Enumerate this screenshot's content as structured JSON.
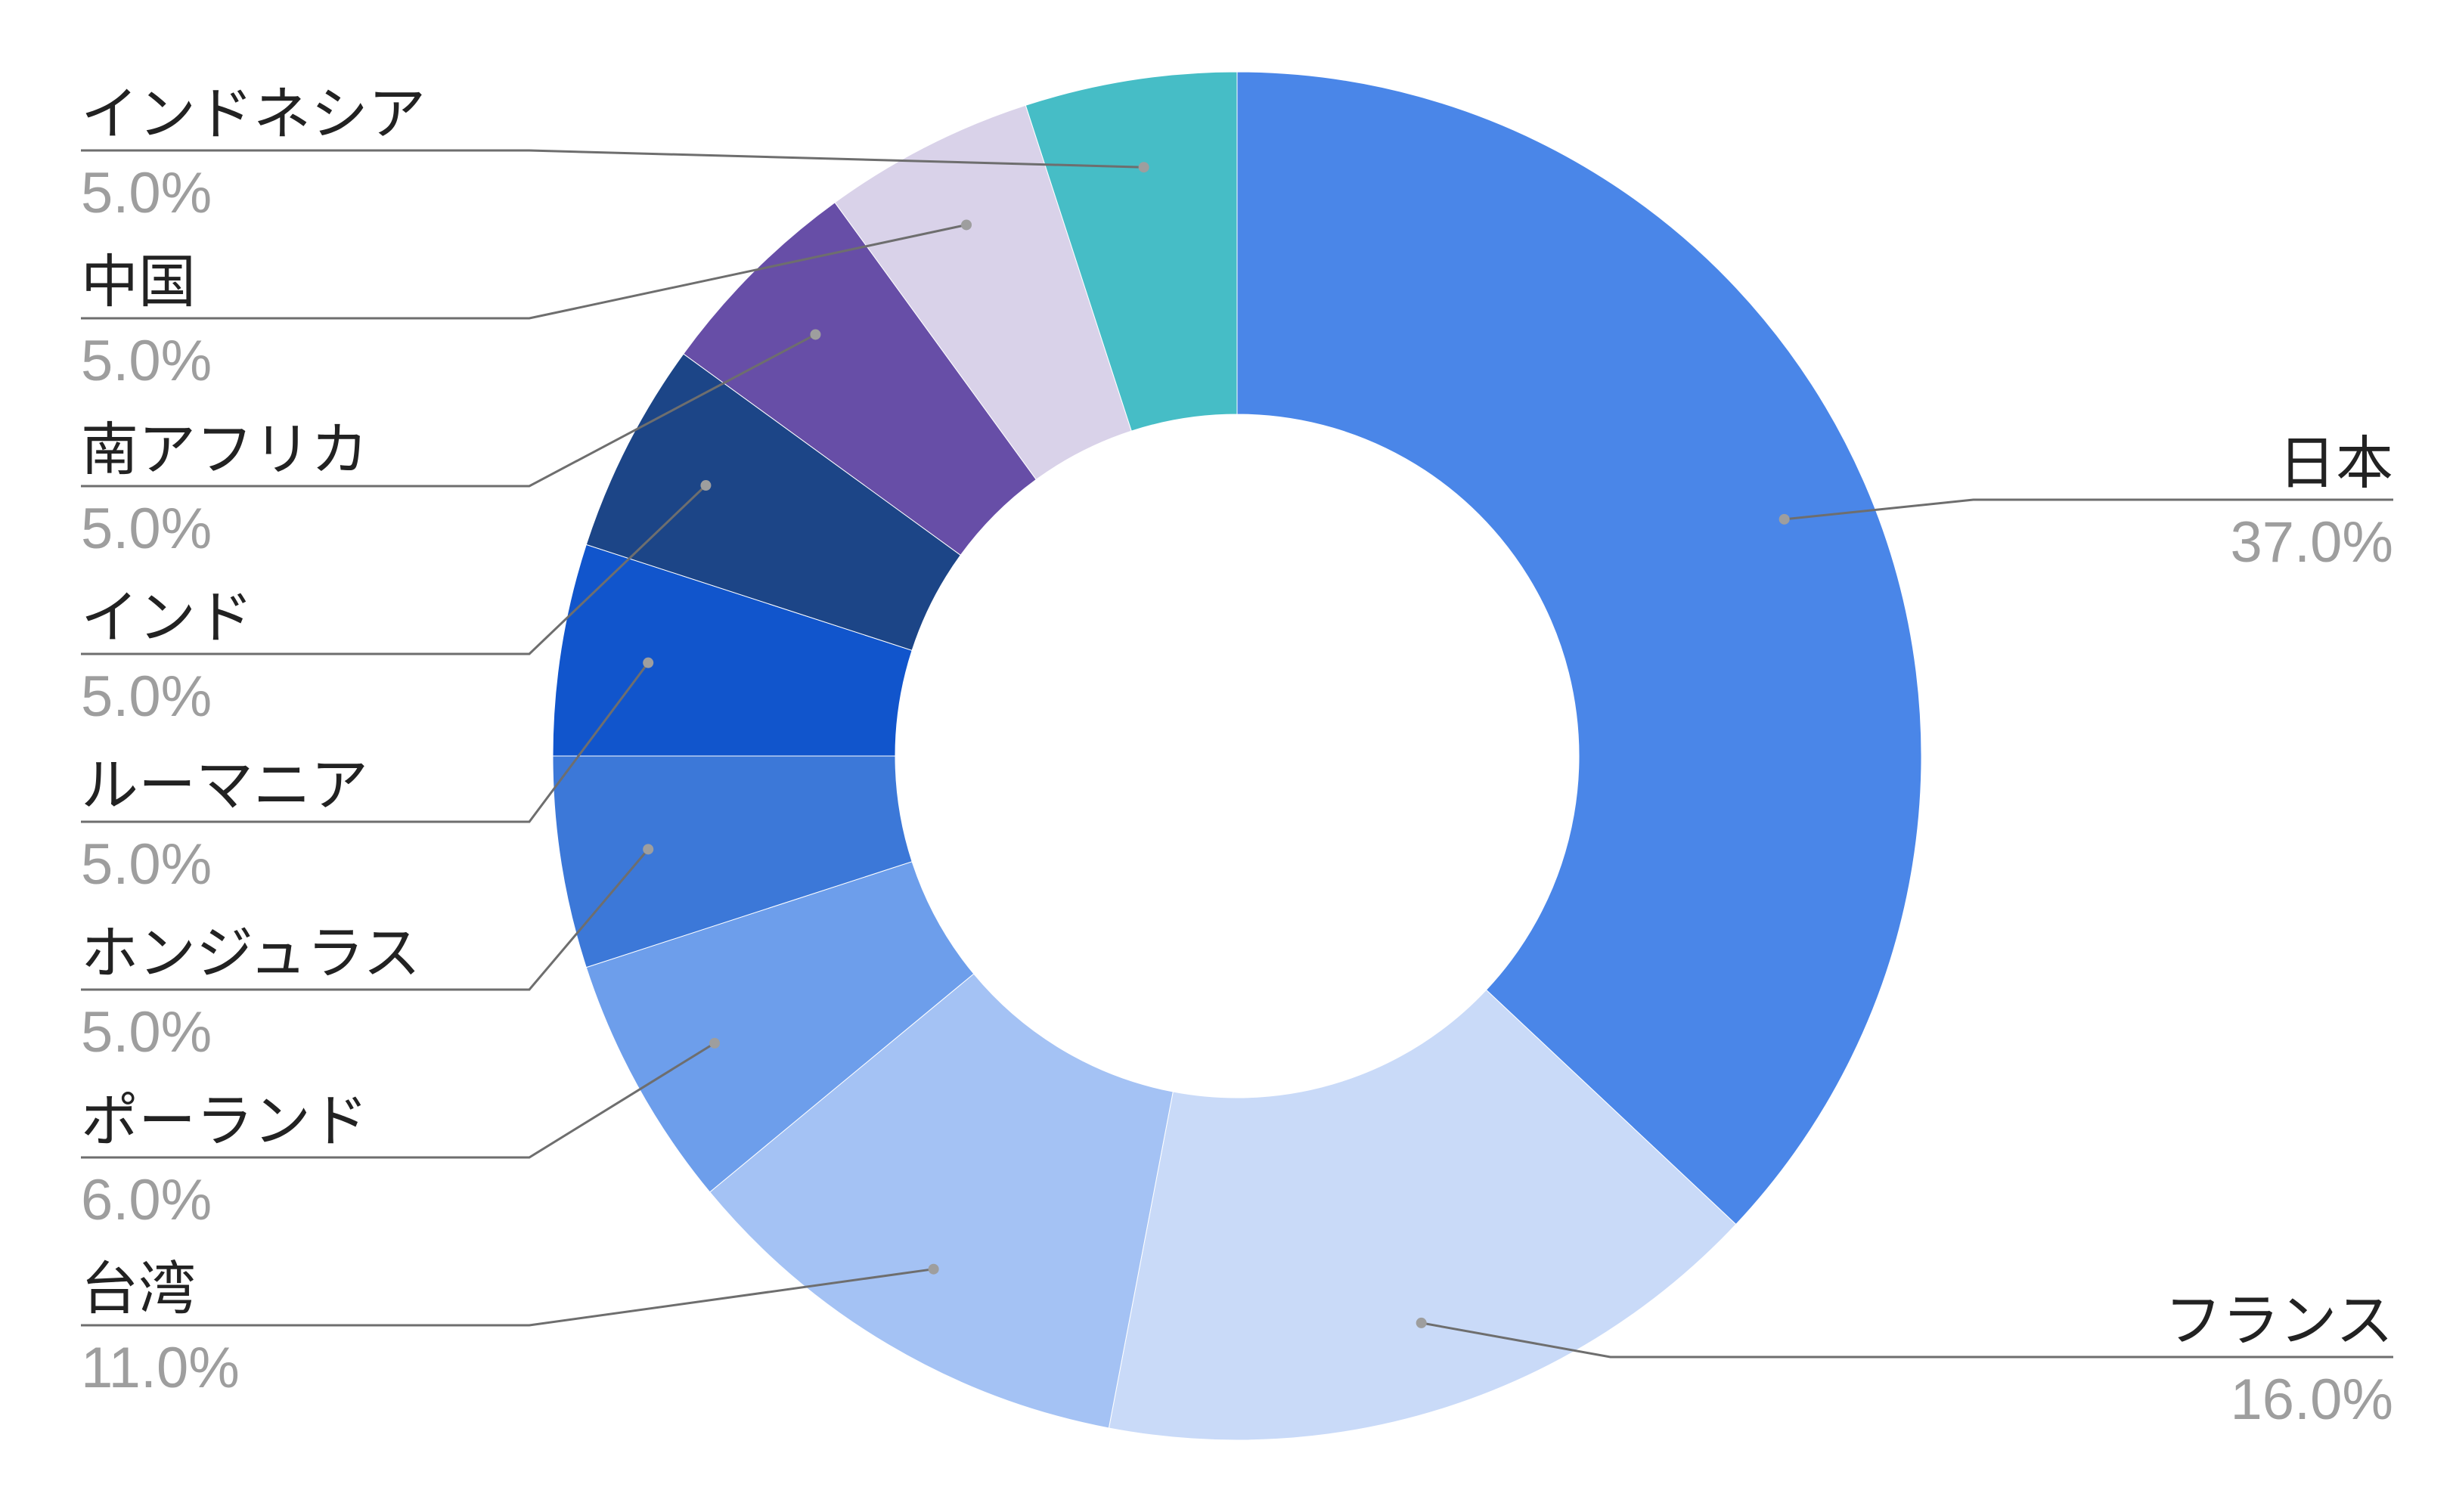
{
  "chart_data": {
    "type": "pie",
    "variant": "donut",
    "title": "",
    "legend": "none",
    "slices": [
      {
        "label": "日本",
        "value": 37.0,
        "pct_label": "37.0%",
        "color": "#4a86e8"
      },
      {
        "label": "フランス",
        "value": 16.0,
        "pct_label": "16.0%",
        "color": "#c9daf8"
      },
      {
        "label": "台湾",
        "value": 11.0,
        "pct_label": "11.0%",
        "color": "#a4c2f4"
      },
      {
        "label": "ポーランド",
        "value": 6.0,
        "pct_label": "6.0%",
        "color": "#6d9eeb"
      },
      {
        "label": "ホンジュラス",
        "value": 5.0,
        "pct_label": "5.0%",
        "color": "#3c78d8"
      },
      {
        "label": "ルーマニア",
        "value": 5.0,
        "pct_label": "5.0%",
        "color": "#1155cc"
      },
      {
        "label": "インド",
        "value": 5.0,
        "pct_label": "5.0%",
        "color": "#1c4587"
      },
      {
        "label": "南アフリカ",
        "value": 5.0,
        "pct_label": "5.0%",
        "color": "#674ea7"
      },
      {
        "label": "中国",
        "value": 5.0,
        "pct_label": "5.0%",
        "color": "#d9d2e9"
      },
      {
        "label": "インドネシア",
        "value": 5.0,
        "pct_label": "5.0%",
        "color": "#46bdc6"
      }
    ]
  }
}
